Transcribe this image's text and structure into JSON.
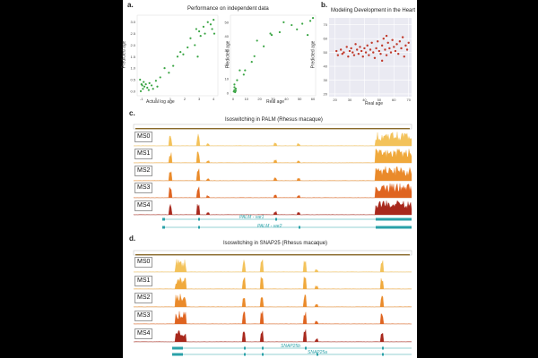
{
  "panel_labels": {
    "a": "a.",
    "b": "b.",
    "c": "c.",
    "d": "d."
  },
  "titles": {
    "a": "Performance on independent data",
    "b": "Modeling Development in the Heart",
    "c": "Isoswitching in PALM (Rhesus macaque)",
    "d": "Isoswitching in SNAP25 (Rhesus macaque)"
  },
  "colors": {
    "green": "#3aa544",
    "red_dot": "#c0392b",
    "ms0": "#f3c25a",
    "ms1": "#f0a93c",
    "ms2": "#ea8a2a",
    "ms3": "#df6420",
    "ms4": "#a8281c",
    "teal": "#2aa1a8",
    "ruler": "#8a6a2a"
  },
  "tracks": [
    "MS0",
    "MS1",
    "MS2",
    "MS3",
    "MS4"
  ],
  "genes_c": [
    "PALM - var1",
    "PALM - var2"
  ],
  "genes_d": [
    "SNAP25b",
    "SNAP25a"
  ],
  "chart_data": [
    {
      "type": "scatter",
      "xlabel": "Actual log age",
      "ylabel": "Predicted age",
      "xticks": [
        "-1",
        "0",
        "1",
        "2",
        "3",
        "4"
      ],
      "yticks": [
        "0.0",
        "0.5",
        "1.0",
        "1.5",
        "2.0",
        "2.5",
        "3.0"
      ],
      "xlim": [
        -1.3,
        4.3
      ],
      "ylim": [
        -0.2,
        3.3
      ],
      "points": [
        [
          -1.1,
          0.5
        ],
        [
          -1.0,
          0.3
        ],
        [
          -0.9,
          0.1
        ],
        [
          -0.85,
          0.4
        ],
        [
          -0.8,
          0.2
        ],
        [
          -1.05,
          0.0
        ],
        [
          -0.95,
          0.25
        ],
        [
          -0.7,
          0.3
        ],
        [
          -0.6,
          0.15
        ],
        [
          -0.5,
          0.05
        ],
        [
          -0.45,
          0.35
        ],
        [
          -0.3,
          0.25
        ],
        [
          -0.2,
          0.1
        ],
        [
          0.0,
          0.45
        ],
        [
          0.1,
          0.2
        ],
        [
          0.3,
          0.6
        ],
        [
          0.6,
          1.0
        ],
        [
          0.9,
          0.8
        ],
        [
          1.2,
          1.1
        ],
        [
          1.5,
          1.5
        ],
        [
          1.9,
          1.6
        ],
        [
          2.2,
          1.9
        ],
        [
          2.4,
          2.3
        ],
        [
          2.7,
          2.0
        ],
        [
          2.9,
          1.5
        ],
        [
          3.0,
          2.6
        ],
        [
          3.1,
          2.4
        ],
        [
          3.3,
          2.8
        ],
        [
          3.4,
          2.5
        ],
        [
          3.6,
          3.0
        ],
        [
          3.8,
          2.9
        ],
        [
          3.9,
          2.7
        ],
        [
          4.0,
          3.1
        ],
        [
          4.05,
          2.5
        ],
        [
          2.8,
          2.7
        ],
        [
          1.7,
          1.7
        ]
      ]
    },
    {
      "type": "scatter",
      "xlabel": "Real age",
      "ylabel": "Predicted age",
      "xticks": [
        "0",
        "10",
        "20",
        "30",
        "40",
        "50",
        "60"
      ],
      "yticks": [
        "0",
        "10",
        "20",
        "30",
        "40",
        "50"
      ],
      "xlim": [
        -2,
        62
      ],
      "ylim": [
        -2,
        55
      ],
      "points": [
        [
          0.5,
          1
        ],
        [
          1,
          2
        ],
        [
          1,
          4
        ],
        [
          1.5,
          0.5
        ],
        [
          2,
          3
        ],
        [
          2,
          1.5
        ],
        [
          1,
          6
        ],
        [
          3,
          9
        ],
        [
          5,
          16
        ],
        [
          8,
          13
        ],
        [
          9,
          16
        ],
        [
          14,
          22
        ],
        [
          16,
          26
        ],
        [
          18,
          37
        ],
        [
          23,
          33
        ],
        [
          28,
          42
        ],
        [
          29,
          41
        ],
        [
          35,
          43
        ],
        [
          38,
          50
        ],
        [
          44,
          48
        ],
        [
          48,
          45
        ],
        [
          52,
          49
        ],
        [
          56,
          41
        ],
        [
          58,
          51
        ],
        [
          60,
          53
        ]
      ]
    },
    {
      "type": "scatter",
      "xlabel": "Real age",
      "ylabel": "Predicted age",
      "xticks": [
        "20",
        "30",
        "40",
        "50",
        "60",
        "70"
      ],
      "yticks": [
        "20",
        "30",
        "40",
        "50",
        "60",
        "70"
      ],
      "xlim": [
        16,
        72
      ],
      "ylim": [
        18,
        75
      ],
      "points": [
        [
          21,
          51
        ],
        [
          22,
          48
        ],
        [
          24,
          52
        ],
        [
          25,
          49
        ],
        [
          26,
          50
        ],
        [
          28,
          54
        ],
        [
          29,
          47
        ],
        [
          30,
          51
        ],
        [
          31,
          53
        ],
        [
          32,
          50
        ],
        [
          33,
          48
        ],
        [
          34,
          56
        ],
        [
          35,
          52
        ],
        [
          36,
          49
        ],
        [
          37,
          54
        ],
        [
          38,
          51
        ],
        [
          39,
          47
        ],
        [
          40,
          53
        ],
        [
          41,
          50
        ],
        [
          42,
          55
        ],
        [
          43,
          48
        ],
        [
          44,
          52
        ],
        [
          45,
          57
        ],
        [
          46,
          50
        ],
        [
          47,
          46
        ],
        [
          48,
          53
        ],
        [
          49,
          58
        ],
        [
          50,
          51
        ],
        [
          51,
          49
        ],
        [
          52,
          55
        ],
        [
          53,
          60
        ],
        [
          54,
          52
        ],
        [
          55,
          48
        ],
        [
          56,
          57
        ],
        [
          57,
          53
        ],
        [
          58,
          50
        ],
        [
          59,
          59
        ],
        [
          60,
          54
        ],
        [
          61,
          51
        ],
        [
          62,
          56
        ],
        [
          63,
          49
        ],
        [
          64,
          58
        ],
        [
          65,
          53
        ],
        [
          66,
          61
        ],
        [
          67,
          47
        ],
        [
          68,
          55
        ],
        [
          69,
          52
        ],
        [
          70,
          57
        ],
        [
          52,
          44
        ],
        [
          55,
          62
        ]
      ]
    }
  ]
}
